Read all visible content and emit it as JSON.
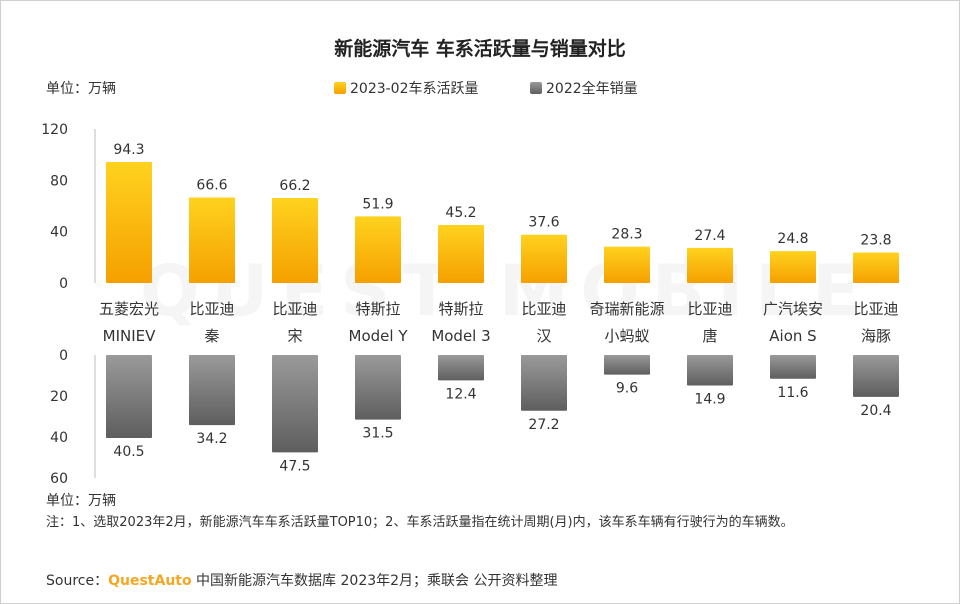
{
  "title": "新能源汽车 车系活跃量与销量对比",
  "unit_top": "单位：万辆",
  "unit_bottom": "单位：万辆",
  "note": "注：1、选取2023年2月，新能源汽车车系活跃量TOP10；2、车系活跃量指在统计周期(月)内，该车系车辆有行驶行为的车辆数。",
  "source": {
    "prefix": "Source：",
    "brand": "QuestAuto",
    "text": " 中国新能源汽车数据库 2023年2月；乘联会 公开资料整理"
  },
  "watermark": "QUEST MOBILE",
  "colors": {
    "active_top": "#ffd21f",
    "active_bottom": "#f5a000",
    "sales_top": "#9a9a9a",
    "sales_bottom": "#5e5e5e"
  },
  "chart_data": {
    "type": "bar",
    "categories": [
      [
        "五菱宏光",
        "MINIEV"
      ],
      [
        "比亚迪",
        "秦"
      ],
      [
        "比亚迪",
        "宋"
      ],
      [
        "特斯拉",
        "Model Y"
      ],
      [
        "特斯拉",
        "Model 3"
      ],
      [
        "比亚迪",
        "汉"
      ],
      [
        "奇瑞新能源",
        "小蚂蚁"
      ],
      [
        "比亚迪",
        "唐"
      ],
      [
        "广汽埃安",
        "Aion S"
      ],
      [
        "比亚迪",
        "海豚"
      ]
    ],
    "series": [
      {
        "name": "2023-02车系活跃量",
        "values": [
          94.3,
          66.6,
          66.2,
          51.9,
          45.2,
          37.6,
          28.3,
          27.4,
          24.8,
          23.8
        ],
        "labels": [
          "94.3",
          "66.6",
          "66.2",
          "51.9",
          "45.2",
          "37.6",
          "28.3",
          "27.4",
          "24.8",
          "23.8"
        ],
        "axis": "top",
        "ylim": [
          0,
          120
        ],
        "ticks": [
          "0",
          "40",
          "80",
          "120"
        ]
      },
      {
        "name": "2022全年销量",
        "values": [
          40.5,
          34.2,
          47.5,
          31.5,
          12.4,
          27.2,
          9.6,
          14.9,
          11.6,
          20.4
        ],
        "labels": [
          "40.5",
          "34.2",
          "47.5",
          "31.5",
          "12.4",
          "27.2",
          "9.6",
          "14.9",
          "11.6",
          "20.4"
        ],
        "axis": "bottom",
        "ylim": [
          0,
          60
        ],
        "ticks": [
          "0",
          "20",
          "40",
          "60"
        ]
      }
    ]
  }
}
